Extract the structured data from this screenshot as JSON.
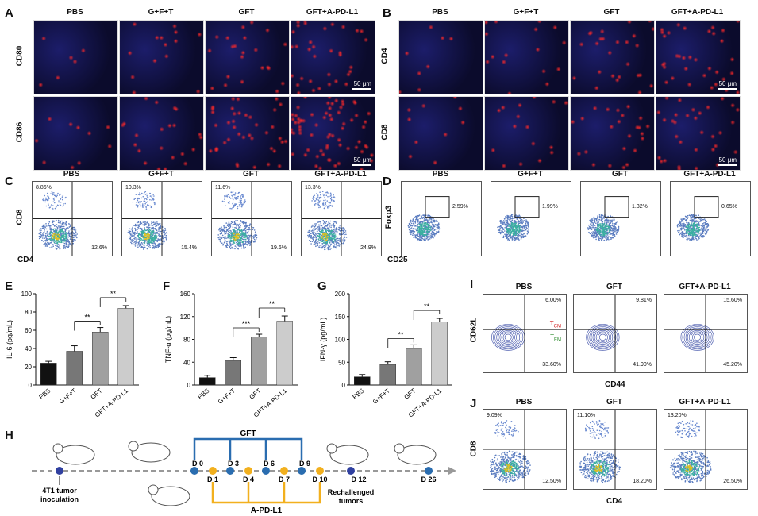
{
  "panels": {
    "A": {
      "label": "A",
      "titles": [
        "PBS",
        "G+F+T",
        "GFT",
        "GFT+A-PD-L1"
      ],
      "rows": [
        "CD80",
        "CD86"
      ],
      "scale": "50 μm"
    },
    "B": {
      "label": "B",
      "titles": [
        "PBS",
        "G+F+T",
        "GFT",
        "GFT+A-PD-L1"
      ],
      "rows": [
        "CD4",
        "CD8"
      ],
      "scale": "50 μm"
    },
    "C": {
      "label": "C",
      "titles": [
        "PBS",
        "G+F+T",
        "GFT",
        "GFT+A-PD-L1"
      ],
      "ul": [
        "8.86%",
        "10.3%",
        "11.6%",
        "13.3%"
      ],
      "lr": [
        "12.6%",
        "15.4%",
        "19.6%",
        "24.9%"
      ],
      "ylab": "CD8",
      "xlab": "CD4"
    },
    "D": {
      "label": "D",
      "titles": [
        "PBS",
        "G+F+T",
        "GFT",
        "GFT+A-PD-L1"
      ],
      "gate": [
        "2.59%",
        "1.99%",
        "1.32%",
        "0.65%"
      ],
      "ylab": "Foxp3",
      "xlab": "CD25"
    },
    "I": {
      "label": "I",
      "titles": [
        "PBS",
        "GFT",
        "GFT+A-PD-L1"
      ],
      "ur": [
        "6.00%",
        "9.81%",
        "15.60%"
      ],
      "lr": [
        "33.60%",
        "41.90%",
        "45.20%"
      ],
      "ylab": "CD62L",
      "xlab": "CD44",
      "tcm": "T",
      "tcm_sub": "CM",
      "tem": "T",
      "tem_sub": "EM"
    },
    "J": {
      "label": "J",
      "titles": [
        "PBS",
        "GFT",
        "GFT+A-PD-L1"
      ],
      "ul": [
        "9.09%",
        "11.10%",
        "13.20%"
      ],
      "lr": [
        "12.50%",
        "18.20%",
        "26.50%"
      ],
      "ylab": "CD8",
      "xlab": "CD4"
    },
    "H": {
      "label": "H",
      "gft": "GFT",
      "apdl1": "A-PD-L1",
      "top_days": [
        "D 0",
        "D 3",
        "D 6",
        "D 9"
      ],
      "bot_days": [
        "D 1",
        "D 4",
        "D 7",
        "D 10"
      ],
      "d12": "D 12",
      "d26": "D 26",
      "inoc": "4T1 tumor\ninoculation",
      "rechal": "Rechallenged\ntumors"
    }
  },
  "colors": {
    "bar_black": "#111111",
    "bar_gray1": "#777777",
    "bar_gray2": "#a0a0a0",
    "bar_light": "#cccccc",
    "blue": "#2a6db0",
    "yellow": "#f2b01e"
  },
  "chart_data": [
    {
      "type": "bar",
      "panel": "E",
      "categories": [
        "PBS",
        "G+F+T",
        "GFT",
        "GFT+A-PD-L1"
      ],
      "values": [
        24,
        37,
        58,
        84
      ],
      "errors": [
        2,
        6,
        5,
        3
      ],
      "ylabel": "IL-6 (pg/mL)",
      "ylim": [
        0,
        100
      ],
      "yticks": [
        0,
        20,
        40,
        60,
        80,
        100
      ],
      "sig": [
        {
          "from": 1,
          "to": 2,
          "label": "**"
        },
        {
          "from": 2,
          "to": 3,
          "label": "**"
        }
      ]
    },
    {
      "type": "bar",
      "panel": "F",
      "categories": [
        "PBS",
        "G+F+T",
        "GFT",
        "GFT+A-PD-L1"
      ],
      "values": [
        13,
        43,
        84,
        112
      ],
      "errors": [
        4,
        5,
        5,
        9
      ],
      "ylabel": "TNF-α (pg/mL)",
      "ylim": [
        0,
        160
      ],
      "yticks": [
        0,
        40,
        80,
        120,
        160
      ],
      "sig": [
        {
          "from": 1,
          "to": 2,
          "label": "***"
        },
        {
          "from": 2,
          "to": 3,
          "label": "**"
        }
      ]
    },
    {
      "type": "bar",
      "panel": "G",
      "categories": [
        "PBS",
        "G+F+T",
        "GFT",
        "GFT+A-PD-L1"
      ],
      "values": [
        18,
        45,
        80,
        138
      ],
      "errors": [
        5,
        6,
        8,
        8
      ],
      "ylabel": "IFN-γ (pg/mL)",
      "ylim": [
        0,
        200
      ],
      "yticks": [
        0,
        50,
        100,
        150,
        200
      ],
      "sig": [
        {
          "from": 1,
          "to": 2,
          "label": "**"
        },
        {
          "from": 2,
          "to": 3,
          "label": "**"
        }
      ]
    }
  ]
}
